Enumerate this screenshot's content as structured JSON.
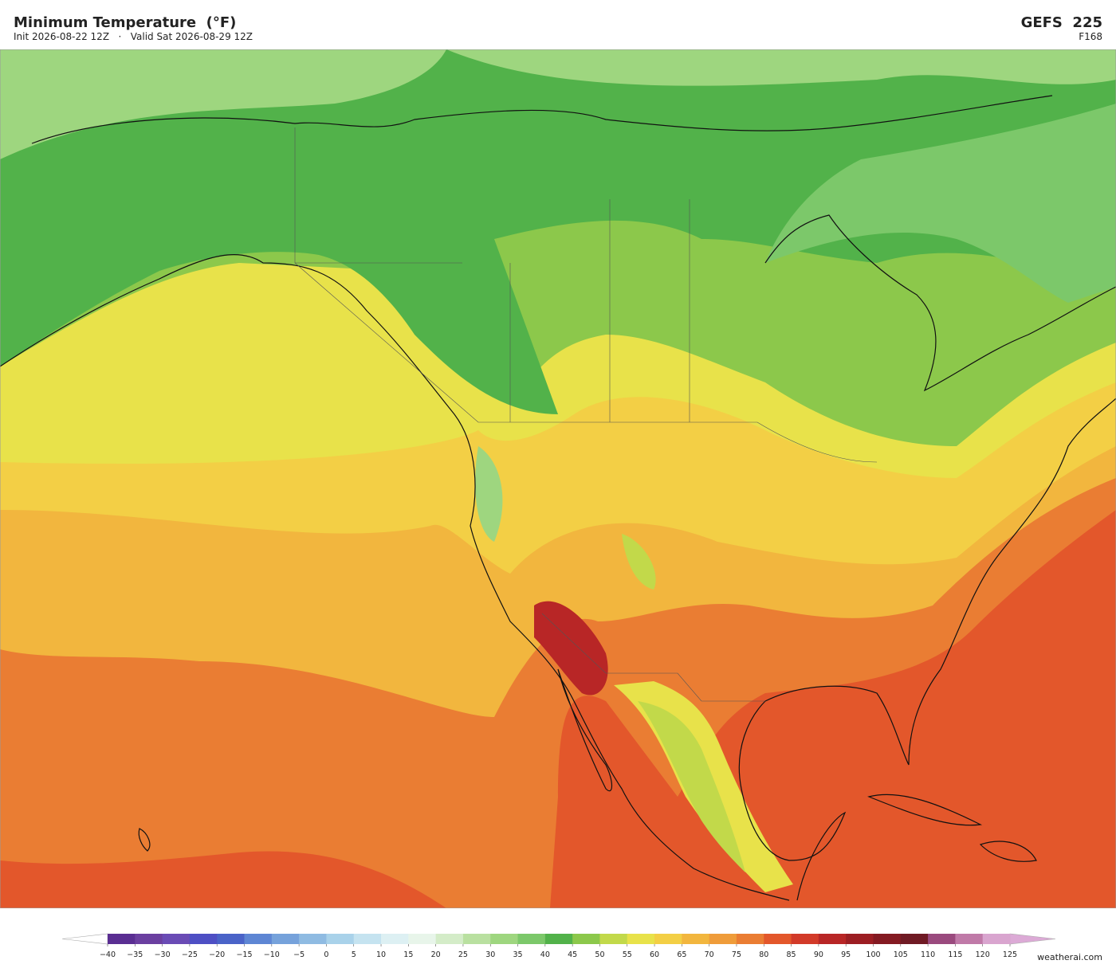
{
  "header": {
    "title": "Minimum Temperature  (°F)",
    "subtitle": "Init 2026-08-22 12Z   ·   Valid Sat 2026-08-29 12Z",
    "model": "GEFS  225",
    "forecast_hour": "F168"
  },
  "colorbar": {
    "ticks": [
      {
        "value": -40,
        "label": "−40"
      },
      {
        "value": -35,
        "label": "−35"
      },
      {
        "value": -30,
        "label": "−30"
      },
      {
        "value": -25,
        "label": "−25"
      },
      {
        "value": -20,
        "label": "−20"
      },
      {
        "value": -15,
        "label": "−15"
      },
      {
        "value": -10,
        "label": "−10"
      },
      {
        "value": -5,
        "label": "−5"
      },
      0,
      5,
      10,
      15,
      20,
      25,
      30,
      35,
      40,
      45,
      50,
      55,
      60,
      65,
      70,
      75,
      80,
      85,
      90,
      95,
      100,
      105,
      110,
      115,
      120,
      125
    ],
    "colors": [
      "#5a2e92",
      "#6b3fa0",
      "#6a4bb5",
      "#4e4fc4",
      "#4a63c8",
      "#5e86d4",
      "#76a2db",
      "#8fbbe2",
      "#a9d2ea",
      "#c5e3f0",
      "#ddf0f3",
      "#e8f5ea",
      "#d4ecc8",
      "#b9e0a0",
      "#9ed67f",
      "#7cc86a",
      "#52b24a",
      "#8cc84b",
      "#c2d94a",
      "#e8e24a",
      "#f3cf45",
      "#f2b63e",
      "#ef9c3a",
      "#ea7d33",
      "#e3572b",
      "#d23a29",
      "#b82626",
      "#9c1e23",
      "#841a22",
      "#6f1a24",
      "#9a4a7e",
      "#c07aa8",
      "#d9a5cf"
    ],
    "under_color": "#ffffff",
    "over_color": "#dcaad6"
  },
  "credit": "weatherai.com"
}
